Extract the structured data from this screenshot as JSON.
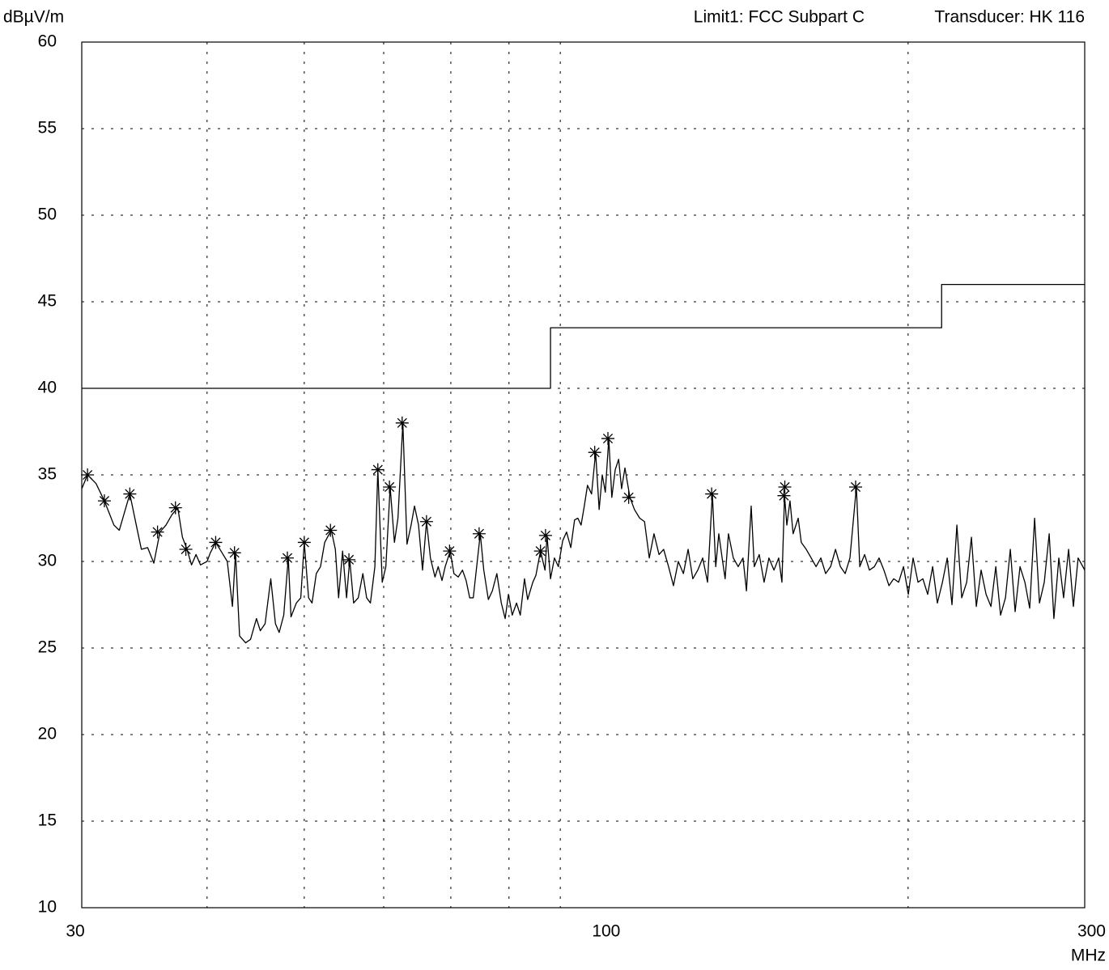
{
  "chart_data": {
    "type": "line",
    "y_label": "dBµV/m",
    "x_unit": "MHz",
    "transducer": "Transducer: HK 116",
    "x_scale": "log",
    "xlim": [
      30,
      300
    ],
    "ylim": [
      10,
      60
    ],
    "xticks": [
      30,
      100,
      300
    ],
    "x_grid": [
      40,
      50,
      60,
      70,
      80,
      90,
      200
    ],
    "yticks": [
      10,
      15,
      20,
      25,
      30,
      35,
      40,
      45,
      50,
      55,
      60
    ],
    "grid": true,
    "series": [
      {
        "name": "Limit1: FCC Subpart C",
        "color": "#000000",
        "x": [
          30,
          88,
          88,
          216,
          216,
          300
        ],
        "values": [
          40,
          40,
          43.5,
          43.5,
          46,
          46
        ]
      },
      {
        "color": "#000000",
        "x": [
          30.0,
          30.4,
          31.0,
          31.6,
          32.3,
          32.7,
          33.5,
          34.0,
          34.4,
          34.9,
          35.4,
          35.9,
          36.4,
          36.9,
          37.4,
          37.8,
          38.2,
          38.6,
          39.0,
          39.4,
          40.0,
          40.3,
          40.8,
          41.4,
          41.9,
          42.4,
          42.7,
          43.1,
          43.7,
          44.2,
          44.8,
          45.2,
          45.7,
          46.3,
          46.8,
          47.2,
          47.7,
          48.2,
          48.5,
          49.1,
          49.6,
          50.0,
          50.5,
          50.9,
          51.4,
          51.9,
          52.4,
          53.2,
          53.7,
          54.1,
          54.6,
          55.1,
          55.5,
          56.0,
          56.6,
          57.2,
          57.7,
          58.2,
          58.8,
          59.2,
          59.8,
          60.3,
          60.9,
          61.5,
          62.0,
          62.7,
          63.3,
          63.9,
          64.4,
          65.0,
          65.6,
          66.2,
          66.8,
          67.5,
          68.0,
          68.6,
          69.1,
          69.9,
          70.5,
          71.2,
          71.9,
          72.5,
          73.1,
          73.7,
          74.9,
          75.5,
          76.3,
          77.0,
          77.8,
          78.6,
          79.3,
          79.9,
          80.6,
          81.4,
          82.1,
          82.9,
          83.5,
          84.5,
          85.1,
          86.0,
          86.9,
          87.3,
          88.0,
          88.8,
          89.6,
          90.5,
          91.3,
          92.2,
          93.0,
          93.7,
          94.4,
          95.1,
          95.8,
          96.7,
          97.6,
          98.4,
          99.1,
          99.8,
          100.6,
          101.3,
          102.1,
          102.9,
          103.6,
          104.4,
          105.6,
          106.7,
          108.0,
          109.2,
          110.4,
          111.6,
          112.9,
          114.1,
          115.4,
          116.7,
          118.0,
          119.4,
          120.7,
          122.0,
          123.4,
          124.8,
          126.2,
          127.6,
          128.6,
          129.5,
          130.5,
          131.4,
          132.4,
          133.9,
          135.4,
          136.9,
          138.0,
          139.5,
          140.5,
          142.1,
          143.7,
          145.3,
          147.0,
          148.6,
          149.7,
          150.6,
          151.4,
          152.5,
          153.6,
          155.4,
          156.5,
          158.3,
          160.1,
          161.9,
          163.7,
          165.5,
          167.4,
          169.3,
          171.2,
          173.1,
          175.0,
          177.6,
          179.0,
          181.0,
          183.0,
          185.1,
          187.1,
          189.2,
          191.4,
          193.5,
          195.7,
          197.9,
          200.1,
          202.3,
          204.6,
          206.9,
          209.2,
          211.6,
          213.9,
          216.4,
          218.8,
          221.2,
          223.7,
          226.2,
          228.8,
          231.3,
          233.9,
          236.5,
          239.2,
          241.9,
          244.6,
          247.3,
          250.1,
          252.9,
          255.7,
          258.6,
          261.5,
          264.4,
          267.4,
          270.4,
          273.4,
          276.5,
          279.5,
          282.7,
          285.8,
          289.1,
          292.3,
          295.5,
          300.0
        ],
        "values": [
          34.2,
          35.0,
          34.5,
          33.5,
          32.1,
          31.8,
          33.9,
          32.1,
          30.7,
          30.8,
          29.9,
          31.7,
          32.1,
          32.7,
          33.1,
          31.4,
          30.7,
          29.8,
          30.4,
          29.8,
          30.0,
          30.5,
          31.1,
          30.5,
          30.0,
          27.4,
          30.5,
          25.7,
          25.3,
          25.5,
          26.7,
          26.0,
          26.4,
          29.0,
          26.4,
          25.9,
          26.9,
          30.2,
          26.8,
          27.6,
          27.9,
          31.1,
          27.9,
          27.6,
          29.3,
          29.7,
          31.1,
          31.8,
          30.7,
          27.9,
          30.6,
          27.9,
          30.1,
          27.6,
          27.9,
          29.3,
          27.9,
          27.6,
          29.7,
          35.3,
          28.8,
          29.7,
          34.3,
          31.1,
          32.5,
          38.0,
          31.0,
          32.1,
          33.2,
          32.1,
          29.5,
          32.3,
          30.2,
          29.1,
          29.7,
          28.9,
          29.7,
          30.6,
          29.3,
          29.1,
          29.5,
          28.9,
          27.9,
          27.9,
          31.6,
          29.5,
          27.8,
          28.3,
          29.3,
          27.6,
          26.7,
          28.1,
          26.9,
          27.6,
          26.9,
          29.0,
          27.8,
          28.8,
          29.2,
          30.6,
          29.5,
          31.5,
          29.0,
          30.2,
          29.7,
          31.2,
          31.7,
          30.8,
          32.4,
          32.5,
          32.1,
          33.2,
          34.4,
          33.9,
          36.3,
          33.0,
          35.0,
          34.0,
          37.1,
          33.7,
          35.3,
          35.9,
          34.2,
          35.4,
          33.7,
          33.0,
          32.5,
          32.3,
          30.2,
          31.6,
          30.4,
          30.7,
          29.7,
          28.6,
          30.0,
          29.3,
          30.7,
          29.0,
          29.5,
          30.2,
          28.8,
          33.9,
          29.7,
          31.6,
          30.2,
          29.0,
          31.6,
          30.2,
          29.7,
          30.2,
          28.3,
          33.2,
          29.7,
          30.4,
          28.8,
          30.2,
          29.5,
          30.2,
          28.8,
          33.8,
          32.1,
          33.5,
          31.6,
          32.5,
          31.1,
          30.7,
          30.2,
          29.7,
          30.2,
          29.3,
          29.7,
          30.7,
          29.7,
          29.3,
          30.2,
          34.3,
          29.7,
          30.4,
          29.5,
          29.7,
          30.2,
          29.5,
          28.6,
          29.0,
          28.8,
          29.7,
          28.1,
          30.2,
          28.8,
          29.0,
          28.1,
          29.7,
          27.6,
          28.8,
          30.2,
          27.5,
          32.1,
          27.9,
          28.8,
          31.4,
          27.4,
          29.5,
          28.1,
          27.4,
          29.7,
          26.9,
          27.9,
          30.7,
          27.1,
          29.7,
          28.8,
          27.3,
          32.5,
          27.6,
          28.8,
          31.6,
          26.7,
          30.2,
          27.9,
          30.7,
          27.4,
          30.2,
          29.5
        ]
      },
      {
        "type": "scatter",
        "marker": "asterisk",
        "color": "#000000",
        "x": [
          30.4,
          31.6,
          33.5,
          35.7,
          37.2,
          38.1,
          40.8,
          42.6,
          48.1,
          50.0,
          53.1,
          55.4,
          59.2,
          60.8,
          62.6,
          66.2,
          69.8,
          74.7,
          86.0,
          87.0,
          97.4,
          100.4,
          105.3,
          127.4,
          150.4,
          150.7,
          177.3
        ],
        "values": [
          35.0,
          33.5,
          33.9,
          31.7,
          33.1,
          30.7,
          31.1,
          30.5,
          30.2,
          31.1,
          31.8,
          30.1,
          35.3,
          34.3,
          38.0,
          32.3,
          30.6,
          31.6,
          30.6,
          31.5,
          36.3,
          37.1,
          33.7,
          33.9,
          33.8,
          34.3,
          34.3
        ]
      }
    ]
  }
}
